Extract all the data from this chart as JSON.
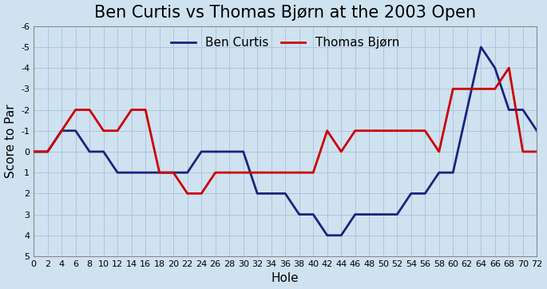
{
  "title": "Ben Curtis vs Thomas Bjørn at the 2003 Open",
  "xlabel": "Hole",
  "ylabel": "Score to Par",
  "background_color": "#cfe2f0",
  "grid_color": "#adc6dc",
  "ben_curtis_color": "#1a237e",
  "bjorn_color": "#cc0000",
  "holes": [
    0,
    2,
    4,
    6,
    8,
    10,
    12,
    14,
    16,
    18,
    20,
    22,
    24,
    26,
    28,
    30,
    32,
    34,
    36,
    38,
    40,
    42,
    44,
    46,
    48,
    50,
    52,
    54,
    56,
    58,
    60,
    62,
    64,
    66,
    68,
    70,
    72
  ],
  "ben_curtis": [
    0,
    0,
    -1,
    -1,
    0,
    0,
    1,
    1,
    1,
    1,
    1,
    1,
    0,
    0,
    0,
    0,
    2,
    2,
    2,
    3,
    3,
    4,
    4,
    3,
    3,
    3,
    3,
    2,
    2,
    1,
    1,
    -2,
    -5,
    -4,
    -2,
    -2,
    -1
  ],
  "thomas_bjorn": [
    0,
    0,
    -1,
    -2,
    -2,
    -1,
    -1,
    -2,
    -2,
    1,
    1,
    2,
    2,
    1,
    1,
    1,
    1,
    1,
    1,
    1,
    1,
    -1,
    0,
    -1,
    -1,
    -1,
    -1,
    -1,
    -1,
    0,
    -3,
    -3,
    -3,
    -3,
    -4,
    0,
    0
  ],
  "ylim_bottom": 5,
  "ylim_top": -6,
  "yticks": [
    -6,
    -5,
    -4,
    -3,
    -2,
    -1,
    0,
    1,
    2,
    3,
    4,
    5
  ],
  "xticks": [
    0,
    2,
    4,
    6,
    8,
    10,
    12,
    14,
    16,
    18,
    20,
    22,
    24,
    26,
    28,
    30,
    32,
    34,
    36,
    38,
    40,
    42,
    44,
    46,
    48,
    50,
    52,
    54,
    56,
    58,
    60,
    62,
    64,
    66,
    68,
    70,
    72
  ],
  "linewidth": 2.0,
  "title_fontsize": 15,
  "label_fontsize": 11,
  "tick_fontsize": 8,
  "legend_fontsize": 11
}
